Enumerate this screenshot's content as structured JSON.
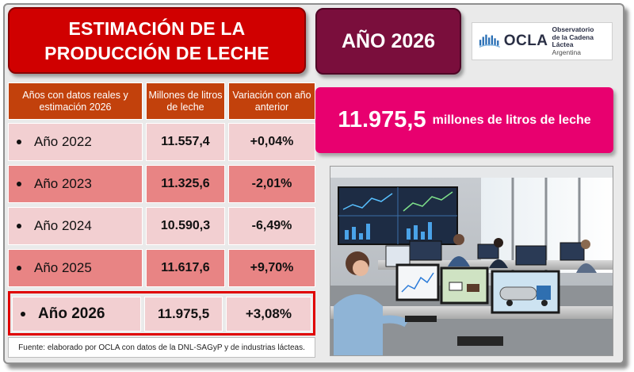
{
  "title": {
    "line1": "ESTIMACIÓN DE LA",
    "line2": "PRODUCCIÓN DE LECHE"
  },
  "year_badge": "AÑO 2026",
  "logo": {
    "word": "OCLA",
    "line1": "Observatorio",
    "line2": "de la Cadena Láctea",
    "line3": "Argentina"
  },
  "table": {
    "headers": [
      "Años con datos reales y estimación 2026",
      "Millones de litros de leche",
      "Variación con año anterior"
    ],
    "rows": [
      {
        "year": "Año 2022",
        "liters": "11.557,4",
        "variation": "+0,04%"
      },
      {
        "year": "Año 2023",
        "liters": "11.325,6",
        "variation": "-2,01%"
      },
      {
        "year": "Año 2024",
        "liters": "10.590,3",
        "variation": "-6,49%"
      },
      {
        "year": "Año 2025",
        "liters": "11.617,6",
        "variation": "+9,70%"
      },
      {
        "year": "Año 2026",
        "liters": "11.975,5",
        "variation": "+3,08%"
      }
    ]
  },
  "headline": {
    "value": "11.975,5",
    "unit": "millones de litros de leche"
  },
  "source": "Fuente: elaborado por OCLA con datos de la  DNL-SAGyP y de industrias lácteas.",
  "colors": {
    "title_red": "#d00000",
    "year_maroon": "#7a0e3c",
    "header_orange": "#c2410c",
    "row_light": "#f2cfd1",
    "row_dark": "#e88484",
    "headline_magenta": "#e8006f",
    "highlight_border": "#e00000"
  }
}
